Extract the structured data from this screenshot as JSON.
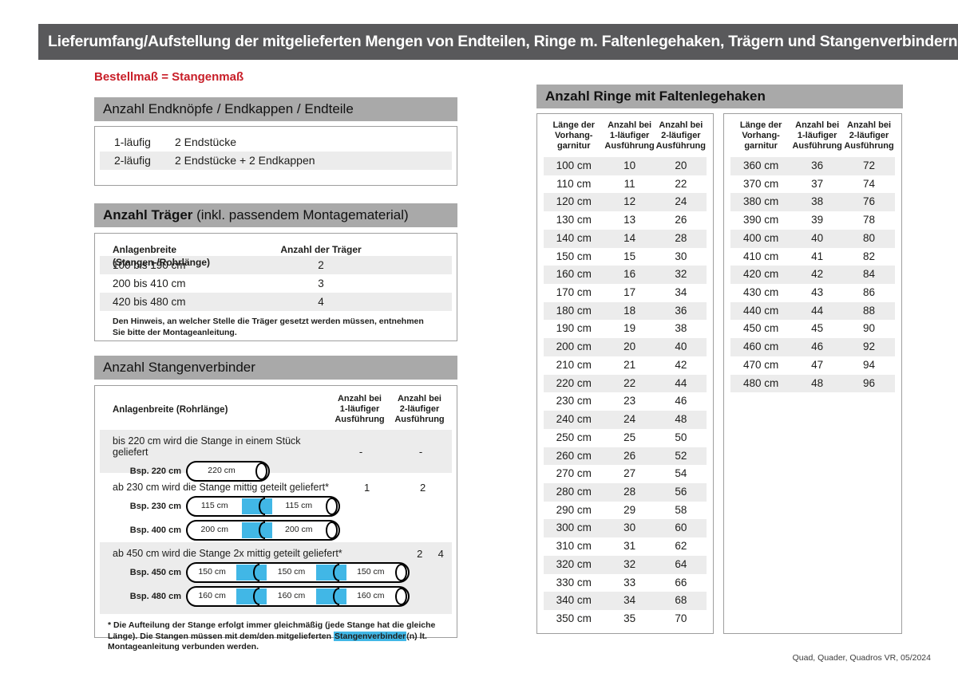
{
  "page": {
    "title": "Lieferumfang/Aufstellung der mitgelieferten Mengen von Endteilen, Ringe m. Faltenlegehaken, Trägern und Stangenverbindern:",
    "subtitle": "Bestellmaß = Stangenmaß",
    "footer": "Quad, Quader, Quadros VR, 05/2024"
  },
  "colors": {
    "title_bar_gray": "#59595b",
    "section_bar_gray": "#a9a9a9",
    "row_stripe_gray": "#ececec",
    "accent_red": "#c81e28",
    "connector_blue": "#41b7e6"
  },
  "endteile": {
    "heading": "Anzahl Endknöpfe / Endkappen / Endteile",
    "rows": [
      {
        "label": "1-läufig",
        "value": "2 Endstücke"
      },
      {
        "label": "2-läufig",
        "value": "2 Endstücke + 2 Endkappen"
      }
    ]
  },
  "traeger": {
    "heading_bold": "Anzahl Träger",
    "heading_rest": " (inkl. passendem Montagematerial)",
    "col1": "Anlagenbreite (Stangen-/Rohrlänge)",
    "col2": "Anzahl der Träger",
    "rows": [
      {
        "breite": "100 bis 190 cm",
        "anzahl": "2"
      },
      {
        "breite": "200 bis 410 cm",
        "anzahl": "3"
      },
      {
        "breite": "420 bis 480 cm",
        "anzahl": "4"
      }
    ],
    "note": "Den Hinweis, an welcher Stelle die Träger gesetzt werden müssen, entnehmen Sie bitte der Montageanleitung."
  },
  "stangenverbinder": {
    "heading": "Anzahl Stangenverbinder",
    "col1": "Anlagenbreite (Rohrlänge)",
    "col2": "Anzahl bei\n1-läufiger\nAusführung",
    "col3": "Anzahl bei\n2-läufiger\nAusführung",
    "blocks": [
      {
        "text": "bis 220 cm wird die Stange in einem Stück geliefert",
        "v1": "-",
        "v2": "-",
        "examples": [
          {
            "label": "Bsp. 220 cm",
            "segments": [
              "220 cm"
            ]
          }
        ]
      },
      {
        "text": "ab 230 cm wird die Stange mittig geteilt geliefert*",
        "v1": "1",
        "v2": "2",
        "examples": [
          {
            "label": "Bsp. 230 cm",
            "segments": [
              "115 cm",
              "115 cm"
            ]
          },
          {
            "label": "Bsp. 400 cm",
            "segments": [
              "200 cm",
              "200 cm"
            ]
          }
        ]
      },
      {
        "text": "ab 450 cm wird die Stange 2x mittig geteilt geliefert*",
        "v1": "2",
        "v2": "4",
        "examples": [
          {
            "label": "Bsp. 450 cm",
            "segments": [
              "150 cm",
              "150 cm",
              "150 cm"
            ]
          },
          {
            "label": "Bsp. 480 cm",
            "segments": [
              "160 cm",
              "160 cm",
              "160 cm"
            ]
          }
        ]
      }
    ],
    "footnote_pre": "* Die Aufteilung der Stange erfolgt immer gleichmäßig (jede Stange hat die gleiche Länge). Die Stangen müssen mit dem/den mitgelieferten ",
    "footnote_highlight": "Stangenverbinder",
    "footnote_post": "(n) lt. Montageanleitung verbunden werden."
  },
  "ringe": {
    "heading": "Anzahl Ringe mit Faltenlegehaken",
    "col_headers": [
      "Länge der\nVorhang-\ngarnitur",
      "Anzahl bei\n1-läufiger\nAusführung",
      "Anzahl bei\n2-läufiger\nAusführung"
    ],
    "table_left": [
      [
        "100 cm",
        "10",
        "20"
      ],
      [
        "110 cm",
        "11",
        "22"
      ],
      [
        "120 cm",
        "12",
        "24"
      ],
      [
        "130 cm",
        "13",
        "26"
      ],
      [
        "140 cm",
        "14",
        "28"
      ],
      [
        "150 cm",
        "15",
        "30"
      ],
      [
        "160 cm",
        "16",
        "32"
      ],
      [
        "170 cm",
        "17",
        "34"
      ],
      [
        "180 cm",
        "18",
        "36"
      ],
      [
        "190 cm",
        "19",
        "38"
      ],
      [
        "200 cm",
        "20",
        "40"
      ],
      [
        "210 cm",
        "21",
        "42"
      ],
      [
        "220 cm",
        "22",
        "44"
      ],
      [
        "230 cm",
        "23",
        "46"
      ],
      [
        "240 cm",
        "24",
        "48"
      ],
      [
        "250 cm",
        "25",
        "50"
      ],
      [
        "260 cm",
        "26",
        "52"
      ],
      [
        "270 cm",
        "27",
        "54"
      ],
      [
        "280 cm",
        "28",
        "56"
      ],
      [
        "290 cm",
        "29",
        "58"
      ],
      [
        "300 cm",
        "30",
        "60"
      ],
      [
        "310 cm",
        "31",
        "62"
      ],
      [
        "320 cm",
        "32",
        "64"
      ],
      [
        "330 cm",
        "33",
        "66"
      ],
      [
        "340 cm",
        "34",
        "68"
      ],
      [
        "350 cm",
        "35",
        "70"
      ]
    ],
    "table_right": [
      [
        "360 cm",
        "36",
        "72"
      ],
      [
        "370 cm",
        "37",
        "74"
      ],
      [
        "380 cm",
        "38",
        "76"
      ],
      [
        "390 cm",
        "39",
        "78"
      ],
      [
        "400 cm",
        "40",
        "80"
      ],
      [
        "410 cm",
        "41",
        "82"
      ],
      [
        "420 cm",
        "42",
        "84"
      ],
      [
        "430 cm",
        "43",
        "86"
      ],
      [
        "440 cm",
        "44",
        "88"
      ],
      [
        "450 cm",
        "45",
        "90"
      ],
      [
        "460 cm",
        "46",
        "92"
      ],
      [
        "470 cm",
        "47",
        "94"
      ],
      [
        "480 cm",
        "48",
        "96"
      ]
    ]
  }
}
